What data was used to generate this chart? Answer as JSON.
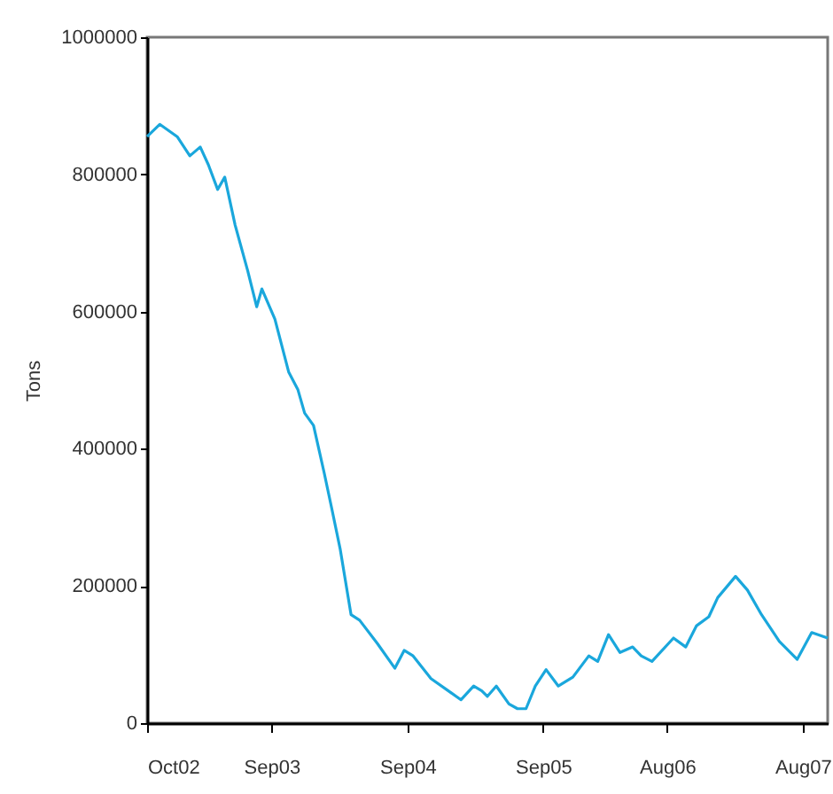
{
  "chart_data": {
    "type": "line",
    "ylabel": "Tons",
    "x": [
      "2002-10-01",
      "2002-11-04",
      "2002-12-21",
      "2003-01-24",
      "2003-02-21",
      "2003-03-15",
      "2003-04-09",
      "2003-04-28",
      "2003-05-26",
      "2003-06-29",
      "2003-07-23",
      "2003-08-06",
      "2003-09-10",
      "2003-10-17",
      "2003-11-11",
      "2003-11-29",
      "2003-12-23",
      "2004-01-21",
      "2004-02-10",
      "2004-03-04",
      "2004-04-02",
      "2004-04-25",
      "2004-06-12",
      "2004-07-29",
      "2004-08-23",
      "2004-09-16",
      "2004-11-03",
      "2004-12-20",
      "2005-01-23",
      "2005-02-26",
      "2005-03-20",
      "2005-04-04",
      "2005-04-28",
      "2005-06-01",
      "2005-06-24",
      "2005-07-17",
      "2005-08-11",
      "2005-09-09",
      "2005-10-12",
      "2005-11-20",
      "2006-01-02",
      "2006-01-26",
      "2006-02-24",
      "2006-03-27",
      "2006-04-30",
      "2006-05-23",
      "2006-06-21",
      "2006-08-18",
      "2006-09-20",
      "2006-10-19",
      "2006-11-21",
      "2006-12-15",
      "2007-02-01",
      "2007-03-05",
      "2007-04-12",
      "2007-05-30",
      "2007-07-17",
      "2007-08-25",
      "2007-10-07"
    ],
    "series": [
      {
        "color": "#1aa7dc",
        "values": [
          855000,
          873000,
          855000,
          827000,
          840000,
          814000,
          778000,
          796000,
          726000,
          659000,
          607000,
          633000,
          589000,
          512000,
          486000,
          452000,
          434000,
          364000,
          313000,
          253000,
          158000,
          150000,
          116000,
          80000,
          106000,
          98000,
          65000,
          47000,
          34000,
          54000,
          47000,
          39000,
          54000,
          28000,
          21000,
          21000,
          54000,
          78000,
          54000,
          67000,
          98000,
          90000,
          129000,
          103000,
          111000,
          98000,
          90000,
          124000,
          111000,
          142000,
          155000,
          183000,
          214000,
          194000,
          158000,
          119000,
          93000,
          132000,
          124000
        ]
      }
    ],
    "xlim": [
      "2002-10-01",
      "2007-10-07"
    ],
    "xticks": [
      {
        "value": "2002-10",
        "label": "Oct02"
      },
      {
        "value": "2003-09",
        "label": "Sep03"
      },
      {
        "value": "2004-09",
        "label": "Sep04"
      },
      {
        "value": "2005-09",
        "label": "Sep05"
      },
      {
        "value": "2006-08",
        "label": "Aug06"
      },
      {
        "value": "2007-08",
        "label": "Aug07"
      }
    ],
    "ylim": [
      0,
      1000000
    ],
    "yticks": [
      0,
      200000,
      400000,
      600000,
      800000,
      1000000
    ],
    "grid": false,
    "line_style": "solid",
    "marker": "none"
  }
}
